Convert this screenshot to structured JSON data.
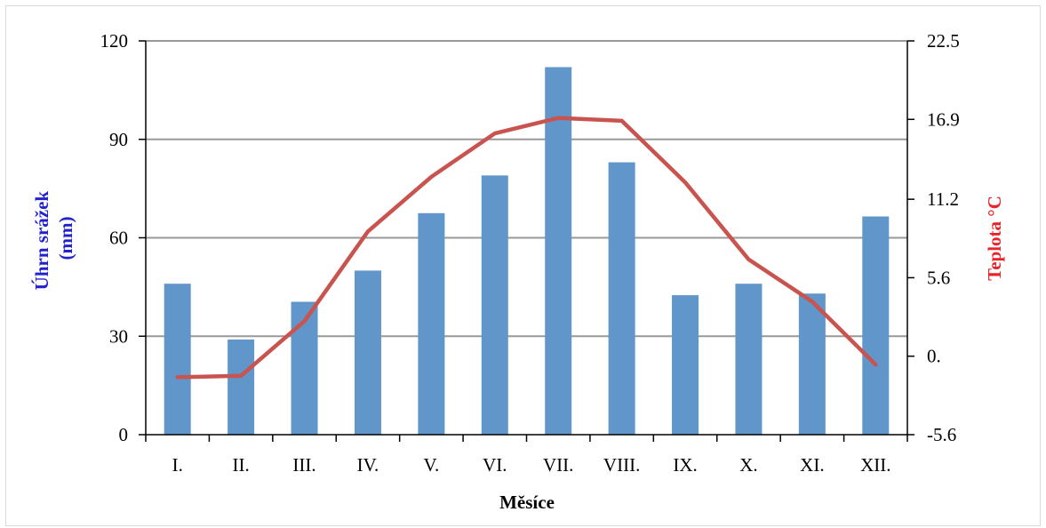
{
  "chart_data": {
    "type": "bar+line",
    "categories": [
      "I.",
      "II.",
      "III.",
      "IV.",
      "V.",
      "VI.",
      "VII.",
      "VIII.",
      "IX.",
      "X.",
      "XI.",
      "XII."
    ],
    "series": [
      {
        "type": "bar",
        "axis": "left",
        "color": "#6096c9",
        "values": [
          46,
          29,
          40.5,
          50,
          67.5,
          79,
          112,
          83,
          42.5,
          46,
          43,
          66.5
        ]
      },
      {
        "type": "line",
        "axis": "right",
        "color": "#c9544f",
        "values": [
          -1.5,
          -1.4,
          2.5,
          8.9,
          12.8,
          15.9,
          17.0,
          16.8,
          12.4,
          6.9,
          3.9,
          -0.6
        ]
      }
    ],
    "xlabel": "Měsíce",
    "ylabel_left": "Úhrn srážek (mm)",
    "ylabel_left_lines": [
      "Úhrn srážek",
      "(mm)"
    ],
    "ylabel_right": "Teplota °C",
    "ylim_left": [
      0,
      120
    ],
    "yticks_left": [
      0,
      30,
      60,
      90,
      120
    ],
    "ylim_right": [
      -5.6,
      22.5
    ],
    "yticks_right": [
      "-5.6",
      "0.",
      "5.6",
      "11.2",
      "16.9",
      "22.5"
    ],
    "grid": true,
    "colors": {
      "bar": "#6096c9",
      "line": "#c9544f",
      "ylabel_left": "#2222cc",
      "ylabel_right": "#e8232a",
      "grid": "#999999"
    }
  }
}
